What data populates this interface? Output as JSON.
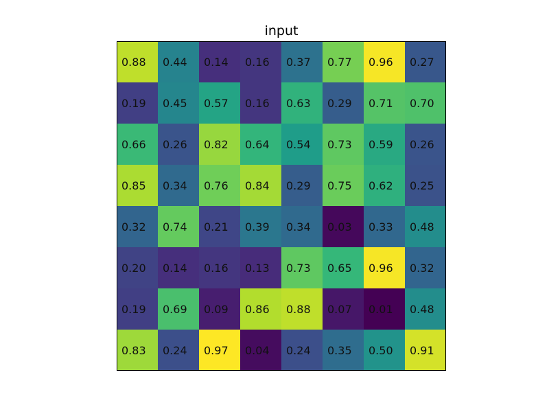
{
  "chart_data": {
    "type": "heatmap",
    "title": "input",
    "colormap": "viridis",
    "value_format": "2 decimals",
    "color_range": [
      0.01,
      0.97
    ],
    "values": [
      [
        0.88,
        0.44,
        0.14,
        0.16,
        0.37,
        0.77,
        0.96,
        0.27
      ],
      [
        0.19,
        0.45,
        0.57,
        0.16,
        0.63,
        0.29,
        0.71,
        0.7
      ],
      [
        0.66,
        0.26,
        0.82,
        0.64,
        0.54,
        0.73,
        0.59,
        0.26
      ],
      [
        0.85,
        0.34,
        0.76,
        0.84,
        0.29,
        0.75,
        0.62,
        0.25
      ],
      [
        0.32,
        0.74,
        0.21,
        0.39,
        0.34,
        0.03,
        0.33,
        0.48
      ],
      [
        0.2,
        0.14,
        0.16,
        0.13,
        0.73,
        0.65,
        0.96,
        0.32
      ],
      [
        0.19,
        0.69,
        0.09,
        0.86,
        0.88,
        0.07,
        0.01,
        0.48
      ],
      [
        0.83,
        0.24,
        0.97,
        0.04,
        0.24,
        0.35,
        0.5,
        0.91
      ]
    ]
  }
}
